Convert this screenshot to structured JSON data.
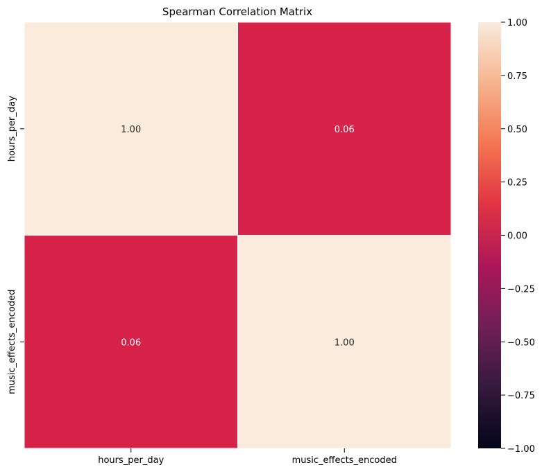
{
  "chart_data": {
    "type": "heatmap",
    "title": "Spearman Correlation Matrix",
    "x_categories": [
      "hours_per_day",
      "music_effects_encoded"
    ],
    "y_categories": [
      "hours_per_day",
      "music_effects_encoded"
    ],
    "values": [
      [
        1.0,
        0.06
      ],
      [
        0.06,
        1.0
      ]
    ],
    "annotations": [
      [
        "1.00",
        "0.06"
      ],
      [
        "0.06",
        "1.00"
      ]
    ],
    "colormap": "rocket",
    "vmin": -1.0,
    "vmax": 1.0,
    "colorbar": {
      "ticks": [
        1.0,
        0.75,
        0.5,
        0.25,
        0.0,
        -0.25,
        -0.5,
        -0.75,
        -1.0
      ],
      "tick_labels": [
        "1.00",
        "0.75",
        "0.50",
        "0.25",
        "0.00",
        "−0.25",
        "−0.50",
        "−0.75",
        "−1.00"
      ]
    },
    "cell_colors": {
      "high": "#faebdd",
      "low": "#d72249"
    },
    "colorbar_stops": [
      "#03051a",
      "#35193e",
      "#701f57",
      "#ad1759",
      "#e13342",
      "#f37651",
      "#f6b48f",
      "#faebdd"
    ],
    "annotation_colors": {
      "on_light": "#262626",
      "on_dark": "#ffffff"
    },
    "xlabel": "",
    "ylabel": "",
    "grid": false
  }
}
